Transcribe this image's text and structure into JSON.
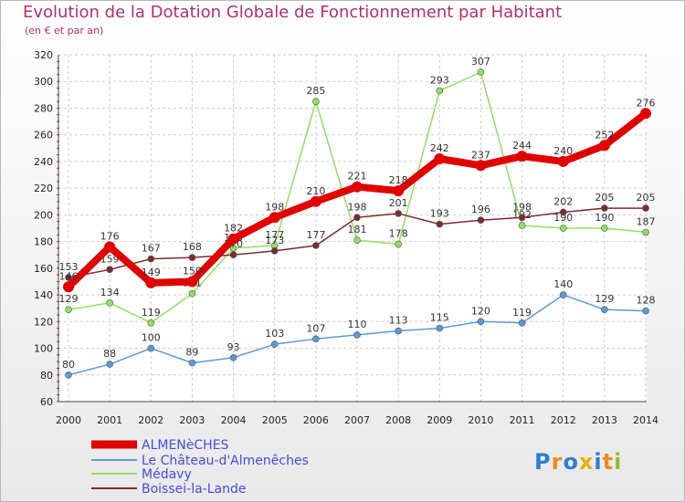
{
  "chart_data": {
    "type": "line",
    "title": "Evolution de la Dotation Globale de Fonctionnement par Habitant",
    "subtitle": "(en € et par an)",
    "ylim": [
      60,
      320
    ],
    "yticks": [
      60,
      80,
      100,
      120,
      140,
      160,
      180,
      200,
      220,
      240,
      260,
      280,
      300,
      320
    ],
    "grid": true,
    "x": [
      2000,
      2001,
      2002,
      2003,
      2004,
      2005,
      2006,
      2007,
      2008,
      2009,
      2010,
      2011,
      2012,
      2013,
      2014
    ],
    "series": [
      {
        "name": "ALMENèCHES",
        "color": "#e00000",
        "values": [
          146,
          176,
          149,
          150,
          182,
          198,
          210,
          221,
          218,
          242,
          237,
          244,
          240,
          252,
          276
        ]
      },
      {
        "name": "Le Château-d'Almenêches",
        "color": "#5b9bd5",
        "values": [
          80,
          88,
          100,
          89,
          93,
          103,
          107,
          110,
          113,
          115,
          120,
          119,
          140,
          129,
          128
        ]
      },
      {
        "name": "Médavy",
        "color": "#90e060",
        "values": [
          129,
          134,
          119,
          141,
          175,
          177,
          285,
          181,
          178,
          293,
          307,
          192,
          190,
          190,
          187
        ]
      },
      {
        "name": "Boissei-la-Lande",
        "color": "#7b2c2c",
        "values": [
          153,
          159,
          167,
          168,
          170,
          173,
          177,
          198,
          201,
          193,
          196,
          198,
          202,
          205,
          205
        ]
      }
    ]
  },
  "logo": {
    "letters": [
      "P",
      "r",
      "o",
      "x",
      "i",
      "t",
      "i"
    ],
    "colors": [
      "#2f7fd0",
      "#f08a1a",
      "#2f7fd0",
      "#e8b000",
      "#2f7fd0",
      "#f08a1a",
      "#90c030"
    ]
  }
}
